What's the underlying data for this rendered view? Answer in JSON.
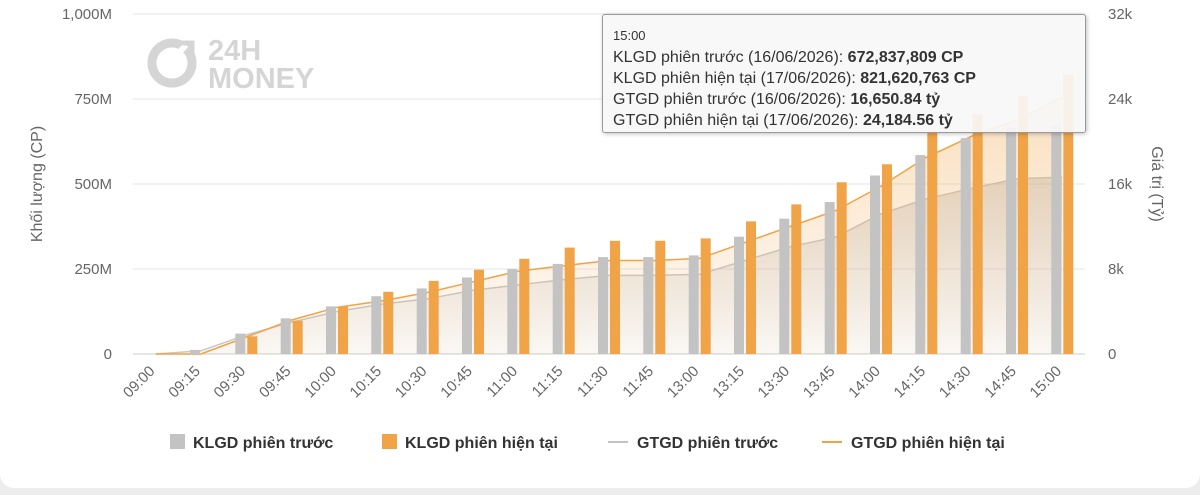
{
  "watermark": {
    "line1": "24H",
    "line2": "MONEY"
  },
  "tooltip": {
    "header": "15:00",
    "rows": [
      {
        "label": "KLGD phiên trước (16/06/2026):",
        "value": "672,837,809 CP"
      },
      {
        "label": "KLGD phiên hiện tại (17/06/2026):",
        "value": "821,620,763 CP"
      },
      {
        "label": "GTGD phiên trước (16/06/2026):",
        "value": "16,650.84 tỷ"
      },
      {
        "label": "GTGD phiên hiện tại (17/06/2026):",
        "value": "24,184.56 tỷ"
      }
    ]
  },
  "chart_data": {
    "type": "bar",
    "categories": [
      "09:00",
      "09:15",
      "09:30",
      "09:45",
      "10:00",
      "10:15",
      "10:30",
      "10:45",
      "11:00",
      "11:15",
      "11:30",
      "11:45",
      "13:00",
      "13:15",
      "13:30",
      "13:45",
      "14:00",
      "14:15",
      "14:30",
      "14:45",
      "15:00"
    ],
    "ylabel": "Khối lượng (CP)",
    "y2label": "Giá trị (Tỷ)",
    "ylim": [
      0,
      1000000000
    ],
    "y2lim": [
      0,
      32000
    ],
    "y_ticks": [
      "0",
      "250M",
      "500M",
      "750M",
      "1,000M"
    ],
    "y2_ticks": [
      "0",
      "8k",
      "16k",
      "24k",
      "32k"
    ],
    "grid": true,
    "legend_position": "bottom",
    "series": [
      {
        "name": "KLGD phiên trước",
        "kind": "bar",
        "axis": "left",
        "color": "#c3c3c3",
        "values": [
          0,
          12000000,
          60000000,
          105000000,
          140000000,
          170000000,
          193000000,
          225000000,
          250000000,
          265000000,
          285000000,
          285000000,
          290000000,
          345000000,
          398000000,
          447000000,
          525000000,
          585000000,
          635000000,
          668000000,
          672837809
        ]
      },
      {
        "name": "KLGD phiên hiện tại",
        "kind": "bar",
        "axis": "left",
        "color": "#f0a347",
        "values": [
          0,
          0,
          52000000,
          98000000,
          140000000,
          183000000,
          215000000,
          248000000,
          280000000,
          313000000,
          333000000,
          333000000,
          340000000,
          390000000,
          440000000,
          505000000,
          558000000,
          655000000,
          705000000,
          760000000,
          821620763
        ]
      },
      {
        "name": "GTGD phiên trước",
        "kind": "area",
        "axis": "right",
        "color": "#c3c3c3",
        "values": [
          0,
          300,
          1800,
          3000,
          4000,
          4700,
          5200,
          6000,
          6500,
          7000,
          7400,
          7400,
          7500,
          8800,
          10100,
          11000,
          13200,
          14600,
          15600,
          16500,
          16650.84
        ]
      },
      {
        "name": "GTGD phiên hiện tại",
        "kind": "area",
        "axis": "right",
        "color": "#f0a347",
        "values": [
          0,
          0,
          1600,
          3200,
          4400,
          5000,
          5800,
          6800,
          7800,
          8300,
          8800,
          8800,
          9000,
          10500,
          12000,
          13500,
          15800,
          18500,
          20500,
          22000,
          24184.56
        ]
      }
    ]
  }
}
